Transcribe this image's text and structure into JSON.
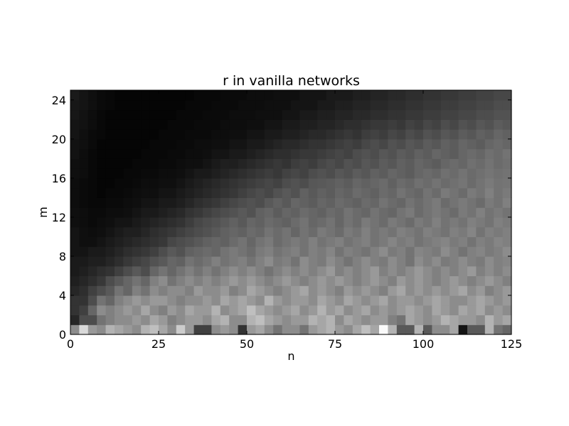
{
  "chart_data": {
    "type": "heatmap",
    "title": "r in vanilla networks",
    "xlabel": "n",
    "ylabel": "m",
    "xlim": [
      0,
      125
    ],
    "ylim": [
      0,
      25
    ],
    "xticks": [
      0,
      25,
      50,
      75,
      100,
      125
    ],
    "yticks": [
      0,
      4,
      8,
      12,
      16,
      20,
      24
    ],
    "colormap": "gray",
    "grid_cols": 50,
    "grid_rows": 25,
    "cell_width_n": 2.5,
    "cell_height_m": 1,
    "values": [
      [
        0.55,
        0.85,
        0.6,
        0.55,
        0.7,
        0.65,
        0.6,
        0.55,
        0.7,
        0.75,
        0.65,
        0.55,
        0.8,
        0.6,
        0.25,
        0.25,
        0.55,
        0.6,
        0.55,
        0.2,
        0.6,
        0.65,
        0.55,
        0.45,
        0.55,
        0.55,
        0.45,
        0.6,
        0.65,
        0.7,
        0.6,
        0.55,
        0.65,
        0.75,
        0.65,
        0.98,
        0.7,
        0.35,
        0.35,
        0.7,
        0.35,
        0.55,
        0.55,
        0.65,
        0.08,
        0.35,
        0.35,
        0.7,
        0.45,
        0.4
      ],
      [
        0.15,
        0.3,
        0.3,
        0.45,
        0.5,
        0.55,
        0.55,
        0.6,
        0.55,
        0.65,
        0.6,
        0.5,
        0.55,
        0.6,
        0.6,
        0.55,
        0.65,
        0.7,
        0.55,
        0.55,
        0.7,
        0.75,
        0.65,
        0.6,
        0.55,
        0.6,
        0.6,
        0.7,
        0.65,
        0.7,
        0.55,
        0.65,
        0.6,
        0.55,
        0.6,
        0.6,
        0.5,
        0.45,
        0.65,
        0.6,
        0.55,
        0.6,
        0.7,
        0.65,
        0.6,
        0.6,
        0.55,
        0.7,
        0.6,
        0.65
      ],
      [
        0.2,
        0.25,
        0.4,
        0.55,
        0.5,
        0.55,
        0.6,
        0.55,
        0.65,
        0.55,
        0.5,
        0.6,
        0.55,
        0.65,
        0.6,
        0.6,
        0.7,
        0.55,
        0.6,
        0.65,
        0.75,
        0.65,
        0.6,
        0.55,
        0.6,
        0.65,
        0.55,
        0.6,
        0.7,
        0.6,
        0.65,
        0.55,
        0.6,
        0.65,
        0.55,
        0.6,
        0.55,
        0.6,
        0.65,
        0.6,
        0.55,
        0.65,
        0.6,
        0.55,
        0.65,
        0.6,
        0.65,
        0.55,
        0.6,
        0.55
      ],
      [
        0.2,
        0.2,
        0.3,
        0.45,
        0.4,
        0.5,
        0.55,
        0.6,
        0.55,
        0.6,
        0.6,
        0.55,
        0.5,
        0.55,
        0.55,
        0.6,
        0.55,
        0.65,
        0.6,
        0.65,
        0.6,
        0.55,
        0.7,
        0.6,
        0.55,
        0.6,
        0.6,
        0.55,
        0.65,
        0.6,
        0.55,
        0.65,
        0.6,
        0.55,
        0.6,
        0.65,
        0.55,
        0.6,
        0.6,
        0.55,
        0.6,
        0.65,
        0.6,
        0.55,
        0.55,
        0.6,
        0.65,
        0.6,
        0.55,
        0.6
      ],
      [
        0.15,
        0.18,
        0.25,
        0.3,
        0.35,
        0.45,
        0.4,
        0.5,
        0.45,
        0.55,
        0.5,
        0.55,
        0.55,
        0.5,
        0.6,
        0.55,
        0.55,
        0.6,
        0.5,
        0.55,
        0.65,
        0.6,
        0.55,
        0.5,
        0.55,
        0.6,
        0.65,
        0.55,
        0.6,
        0.55,
        0.5,
        0.6,
        0.55,
        0.6,
        0.55,
        0.5,
        0.6,
        0.65,
        0.55,
        0.6,
        0.55,
        0.6,
        0.55,
        0.6,
        0.65,
        0.55,
        0.6,
        0.5,
        0.55,
        0.6
      ],
      [
        0.12,
        0.15,
        0.18,
        0.22,
        0.3,
        0.35,
        0.4,
        0.45,
        0.4,
        0.5,
        0.55,
        0.45,
        0.5,
        0.55,
        0.5,
        0.55,
        0.5,
        0.55,
        0.6,
        0.55,
        0.6,
        0.55,
        0.5,
        0.55,
        0.6,
        0.55,
        0.5,
        0.55,
        0.6,
        0.55,
        0.6,
        0.55,
        0.5,
        0.55,
        0.6,
        0.55,
        0.5,
        0.6,
        0.55,
        0.6,
        0.55,
        0.5,
        0.55,
        0.6,
        0.55,
        0.5,
        0.55,
        0.6,
        0.55,
        0.5
      ],
      [
        0.1,
        0.12,
        0.15,
        0.18,
        0.2,
        0.25,
        0.3,
        0.35,
        0.3,
        0.4,
        0.45,
        0.4,
        0.45,
        0.5,
        0.45,
        0.5,
        0.45,
        0.5,
        0.55,
        0.5,
        0.55,
        0.5,
        0.45,
        0.5,
        0.55,
        0.5,
        0.55,
        0.5,
        0.55,
        0.6,
        0.5,
        0.55,
        0.5,
        0.55,
        0.6,
        0.5,
        0.55,
        0.5,
        0.55,
        0.6,
        0.55,
        0.5,
        0.55,
        0.5,
        0.55,
        0.6,
        0.5,
        0.55,
        0.5,
        0.55
      ],
      [
        0.1,
        0.1,
        0.12,
        0.12,
        0.15,
        0.18,
        0.22,
        0.25,
        0.28,
        0.32,
        0.35,
        0.4,
        0.38,
        0.45,
        0.42,
        0.45,
        0.5,
        0.45,
        0.48,
        0.5,
        0.45,
        0.5,
        0.55,
        0.48,
        0.5,
        0.45,
        0.55,
        0.5,
        0.48,
        0.55,
        0.5,
        0.45,
        0.5,
        0.55,
        0.5,
        0.48,
        0.55,
        0.5,
        0.45,
        0.55,
        0.5,
        0.55,
        0.48,
        0.5,
        0.55,
        0.5,
        0.48,
        0.55,
        0.5,
        0.52
      ],
      [
        0.08,
        0.08,
        0.1,
        0.1,
        0.12,
        0.15,
        0.18,
        0.2,
        0.22,
        0.25,
        0.3,
        0.35,
        0.32,
        0.38,
        0.4,
        0.42,
        0.4,
        0.45,
        0.48,
        0.45,
        0.42,
        0.48,
        0.5,
        0.45,
        0.48,
        0.5,
        0.45,
        0.5,
        0.48,
        0.52,
        0.45,
        0.5,
        0.48,
        0.45,
        0.5,
        0.55,
        0.48,
        0.5,
        0.45,
        0.52,
        0.5,
        0.48,
        0.55,
        0.5,
        0.45,
        0.5,
        0.52,
        0.48,
        0.5,
        0.55
      ],
      [
        0.08,
        0.06,
        0.06,
        0.08,
        0.1,
        0.12,
        0.14,
        0.16,
        0.18,
        0.2,
        0.22,
        0.28,
        0.3,
        0.32,
        0.35,
        0.38,
        0.4,
        0.38,
        0.42,
        0.45,
        0.4,
        0.45,
        0.48,
        0.42,
        0.45,
        0.48,
        0.45,
        0.5,
        0.45,
        0.48,
        0.5,
        0.45,
        0.48,
        0.5,
        0.45,
        0.48,
        0.52,
        0.48,
        0.5,
        0.45,
        0.48,
        0.5,
        0.52,
        0.48,
        0.5,
        0.45,
        0.5,
        0.48,
        0.52,
        0.5
      ],
      [
        0.08,
        0.06,
        0.05,
        0.06,
        0.08,
        0.1,
        0.12,
        0.12,
        0.15,
        0.18,
        0.2,
        0.22,
        0.25,
        0.28,
        0.3,
        0.32,
        0.35,
        0.38,
        0.4,
        0.38,
        0.42,
        0.4,
        0.45,
        0.42,
        0.45,
        0.4,
        0.45,
        0.42,
        0.48,
        0.45,
        0.42,
        0.48,
        0.45,
        0.5,
        0.45,
        0.48,
        0.45,
        0.5,
        0.48,
        0.45,
        0.5,
        0.48,
        0.45,
        0.5,
        0.48,
        0.52,
        0.45,
        0.5,
        0.48,
        0.5
      ],
      [
        0.06,
        0.05,
        0.04,
        0.05,
        0.06,
        0.08,
        0.08,
        0.1,
        0.12,
        0.14,
        0.16,
        0.18,
        0.2,
        0.24,
        0.28,
        0.3,
        0.32,
        0.35,
        0.38,
        0.35,
        0.4,
        0.38,
        0.42,
        0.4,
        0.38,
        0.42,
        0.45,
        0.4,
        0.42,
        0.45,
        0.4,
        0.45,
        0.42,
        0.48,
        0.45,
        0.42,
        0.48,
        0.45,
        0.42,
        0.48,
        0.45,
        0.5,
        0.45,
        0.48,
        0.45,
        0.5,
        0.48,
        0.45,
        0.5,
        0.48
      ],
      [
        0.06,
        0.05,
        0.04,
        0.04,
        0.05,
        0.05,
        0.06,
        0.08,
        0.1,
        0.1,
        0.12,
        0.14,
        0.16,
        0.2,
        0.22,
        0.25,
        0.28,
        0.3,
        0.32,
        0.35,
        0.32,
        0.38,
        0.4,
        0.36,
        0.4,
        0.38,
        0.42,
        0.4,
        0.38,
        0.42,
        0.4,
        0.45,
        0.42,
        0.4,
        0.45,
        0.42,
        0.4,
        0.45,
        0.48,
        0.42,
        0.45,
        0.48,
        0.45,
        0.42,
        0.48,
        0.45,
        0.5,
        0.45,
        0.48,
        0.45
      ],
      [
        0.05,
        0.04,
        0.03,
        0.03,
        0.04,
        0.04,
        0.05,
        0.06,
        0.08,
        0.08,
        0.1,
        0.1,
        0.12,
        0.15,
        0.18,
        0.2,
        0.22,
        0.25,
        0.28,
        0.3,
        0.32,
        0.3,
        0.35,
        0.38,
        0.35,
        0.4,
        0.38,
        0.36,
        0.4,
        0.38,
        0.42,
        0.4,
        0.38,
        0.42,
        0.4,
        0.45,
        0.42,
        0.4,
        0.45,
        0.42,
        0.45,
        0.48,
        0.42,
        0.45,
        0.48,
        0.45,
        0.42,
        0.48,
        0.45,
        0.5
      ],
      [
        0.05,
        0.04,
        0.03,
        0.02,
        0.03,
        0.03,
        0.04,
        0.05,
        0.06,
        0.06,
        0.08,
        0.08,
        0.1,
        0.12,
        0.14,
        0.16,
        0.18,
        0.2,
        0.22,
        0.25,
        0.28,
        0.3,
        0.28,
        0.32,
        0.35,
        0.32,
        0.38,
        0.35,
        0.38,
        0.36,
        0.4,
        0.38,
        0.42,
        0.4,
        0.38,
        0.42,
        0.4,
        0.45,
        0.42,
        0.4,
        0.45,
        0.42,
        0.48,
        0.45,
        0.42,
        0.48,
        0.45,
        0.5,
        0.45,
        0.48
      ],
      [
        0.05,
        0.04,
        0.03,
        0.02,
        0.02,
        0.03,
        0.03,
        0.04,
        0.05,
        0.05,
        0.06,
        0.06,
        0.08,
        0.1,
        0.12,
        0.14,
        0.16,
        0.18,
        0.2,
        0.22,
        0.24,
        0.26,
        0.28,
        0.26,
        0.3,
        0.32,
        0.3,
        0.34,
        0.35,
        0.36,
        0.38,
        0.36,
        0.4,
        0.38,
        0.4,
        0.42,
        0.38,
        0.42,
        0.4,
        0.44,
        0.42,
        0.45,
        0.42,
        0.44,
        0.46,
        0.42,
        0.45,
        0.48,
        0.45,
        0.46
      ],
      [
        0.06,
        0.05,
        0.03,
        0.02,
        0.02,
        0.02,
        0.03,
        0.03,
        0.04,
        0.04,
        0.05,
        0.05,
        0.06,
        0.08,
        0.1,
        0.1,
        0.12,
        0.14,
        0.16,
        0.18,
        0.2,
        0.22,
        0.24,
        0.22,
        0.26,
        0.28,
        0.26,
        0.3,
        0.32,
        0.3,
        0.34,
        0.32,
        0.36,
        0.34,
        0.38,
        0.36,
        0.4,
        0.38,
        0.36,
        0.4,
        0.42,
        0.4,
        0.44,
        0.42,
        0.45,
        0.42,
        0.44,
        0.46,
        0.44,
        0.45
      ],
      [
        0.06,
        0.05,
        0.03,
        0.02,
        0.02,
        0.02,
        0.02,
        0.03,
        0.03,
        0.03,
        0.04,
        0.04,
        0.05,
        0.06,
        0.06,
        0.08,
        0.1,
        0.12,
        0.12,
        0.14,
        0.16,
        0.18,
        0.2,
        0.22,
        0.2,
        0.24,
        0.26,
        0.24,
        0.28,
        0.3,
        0.28,
        0.32,
        0.3,
        0.34,
        0.32,
        0.36,
        0.34,
        0.38,
        0.36,
        0.4,
        0.38,
        0.36,
        0.4,
        0.42,
        0.4,
        0.44,
        0.42,
        0.45,
        0.42,
        0.44
      ],
      [
        0.07,
        0.05,
        0.03,
        0.02,
        0.02,
        0.02,
        0.02,
        0.02,
        0.03,
        0.03,
        0.03,
        0.04,
        0.04,
        0.05,
        0.05,
        0.06,
        0.08,
        0.08,
        0.1,
        0.1,
        0.12,
        0.14,
        0.16,
        0.18,
        0.18,
        0.2,
        0.22,
        0.22,
        0.24,
        0.26,
        0.28,
        0.26,
        0.3,
        0.32,
        0.3,
        0.34,
        0.32,
        0.36,
        0.34,
        0.38,
        0.36,
        0.4,
        0.38,
        0.36,
        0.4,
        0.42,
        0.4,
        0.44,
        0.42,
        0.45
      ],
      [
        0.07,
        0.06,
        0.04,
        0.02,
        0.02,
        0.02,
        0.02,
        0.02,
        0.02,
        0.03,
        0.03,
        0.03,
        0.04,
        0.04,
        0.05,
        0.05,
        0.06,
        0.06,
        0.08,
        0.08,
        0.1,
        0.1,
        0.12,
        0.14,
        0.16,
        0.16,
        0.18,
        0.2,
        0.2,
        0.22,
        0.24,
        0.26,
        0.24,
        0.28,
        0.3,
        0.28,
        0.32,
        0.3,
        0.34,
        0.32,
        0.36,
        0.34,
        0.38,
        0.36,
        0.4,
        0.38,
        0.36,
        0.4,
        0.42,
        0.4
      ],
      [
        0.08,
        0.06,
        0.04,
        0.03,
        0.02,
        0.02,
        0.02,
        0.02,
        0.02,
        0.02,
        0.03,
        0.03,
        0.03,
        0.04,
        0.04,
        0.04,
        0.05,
        0.05,
        0.06,
        0.06,
        0.08,
        0.08,
        0.1,
        0.1,
        0.12,
        0.12,
        0.14,
        0.16,
        0.16,
        0.18,
        0.2,
        0.22,
        0.2,
        0.24,
        0.26,
        0.24,
        0.28,
        0.26,
        0.3,
        0.28,
        0.32,
        0.3,
        0.34,
        0.32,
        0.36,
        0.34,
        0.38,
        0.36,
        0.4,
        0.38
      ],
      [
        0.08,
        0.07,
        0.05,
        0.03,
        0.02,
        0.02,
        0.02,
        0.02,
        0.02,
        0.02,
        0.02,
        0.03,
        0.03,
        0.03,
        0.04,
        0.04,
        0.04,
        0.05,
        0.05,
        0.05,
        0.06,
        0.06,
        0.08,
        0.08,
        0.1,
        0.1,
        0.12,
        0.12,
        0.14,
        0.14,
        0.16,
        0.18,
        0.18,
        0.2,
        0.22,
        0.22,
        0.24,
        0.22,
        0.26,
        0.24,
        0.28,
        0.26,
        0.3,
        0.28,
        0.32,
        0.3,
        0.34,
        0.32,
        0.36,
        0.34
      ],
      [
        0.09,
        0.07,
        0.05,
        0.03,
        0.02,
        0.02,
        0.02,
        0.02,
        0.02,
        0.02,
        0.02,
        0.02,
        0.03,
        0.03,
        0.03,
        0.04,
        0.04,
        0.04,
        0.05,
        0.05,
        0.05,
        0.06,
        0.06,
        0.06,
        0.08,
        0.08,
        0.1,
        0.1,
        0.12,
        0.12,
        0.14,
        0.14,
        0.16,
        0.16,
        0.18,
        0.18,
        0.2,
        0.2,
        0.22,
        0.22,
        0.24,
        0.24,
        0.26,
        0.26,
        0.28,
        0.28,
        0.3,
        0.3,
        0.32,
        0.32
      ],
      [
        0.09,
        0.08,
        0.06,
        0.04,
        0.03,
        0.02,
        0.02,
        0.02,
        0.02,
        0.02,
        0.02,
        0.02,
        0.02,
        0.03,
        0.03,
        0.03,
        0.04,
        0.04,
        0.04,
        0.05,
        0.05,
        0.05,
        0.06,
        0.06,
        0.06,
        0.08,
        0.08,
        0.08,
        0.1,
        0.1,
        0.12,
        0.12,
        0.14,
        0.14,
        0.16,
        0.16,
        0.18,
        0.18,
        0.2,
        0.2,
        0.22,
        0.22,
        0.24,
        0.24,
        0.26,
        0.26,
        0.28,
        0.28,
        0.3,
        0.3
      ],
      [
        0.1,
        0.08,
        0.06,
        0.04,
        0.03,
        0.02,
        0.02,
        0.02,
        0.02,
        0.02,
        0.02,
        0.02,
        0.02,
        0.02,
        0.03,
        0.03,
        0.03,
        0.04,
        0.04,
        0.04,
        0.05,
        0.05,
        0.05,
        0.06,
        0.06,
        0.06,
        0.08,
        0.08,
        0.08,
        0.1,
        0.1,
        0.1,
        0.12,
        0.12,
        0.14,
        0.14,
        0.16,
        0.16,
        0.18,
        0.18,
        0.2,
        0.2,
        0.22,
        0.22,
        0.24,
        0.24,
        0.26,
        0.26,
        0.28,
        0.28
      ]
    ]
  }
}
